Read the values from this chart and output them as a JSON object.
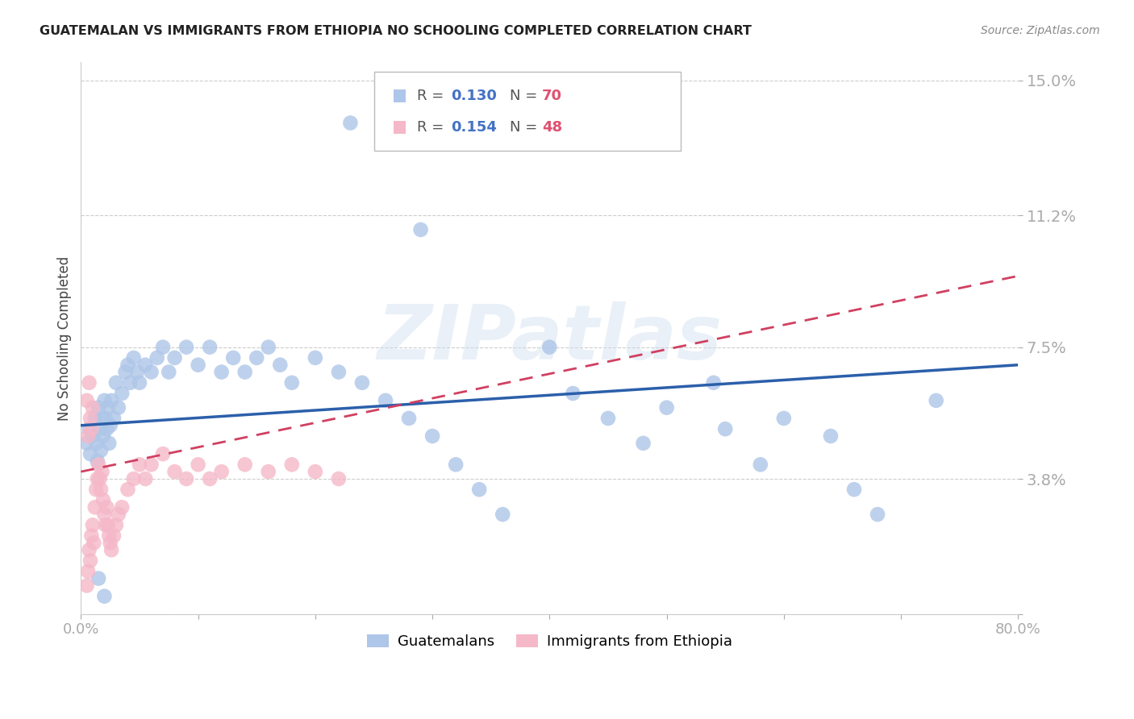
{
  "title": "GUATEMALAN VS IMMIGRANTS FROM ETHIOPIA NO SCHOOLING COMPLETED CORRELATION CHART",
  "source": "Source: ZipAtlas.com",
  "ylabel": "No Schooling Completed",
  "xlim": [
    0,
    0.8
  ],
  "ylim": [
    0,
    0.155
  ],
  "ytick_vals": [
    0.0,
    0.038,
    0.075,
    0.112,
    0.15
  ],
  "ytick_labels": [
    "",
    "3.8%",
    "7.5%",
    "11.2%",
    "15.0%"
  ],
  "xtick_vals": [
    0.0,
    0.1,
    0.2,
    0.3,
    0.4,
    0.5,
    0.6,
    0.7,
    0.8
  ],
  "xtick_labels": [
    "0.0%",
    "",
    "",
    "",
    "",
    "",
    "",
    "",
    "80.0%"
  ],
  "blue_color": "#aec6e8",
  "pink_color": "#f5b8c8",
  "line_blue_color": "#2b5faa",
  "line_pink_color": "#d04060",
  "watermark": "ZIPatlas",
  "blue_line": [
    0.0,
    0.053,
    0.8,
    0.07
  ],
  "pink_line": [
    0.0,
    0.04,
    0.8,
    0.095
  ],
  "blue_scatter": [
    [
      0.005,
      0.048
    ],
    [
      0.007,
      0.052
    ],
    [
      0.008,
      0.045
    ],
    [
      0.01,
      0.05
    ],
    [
      0.012,
      0.055
    ],
    [
      0.013,
      0.048
    ],
    [
      0.014,
      0.043
    ],
    [
      0.015,
      0.058
    ],
    [
      0.016,
      0.052
    ],
    [
      0.017,
      0.046
    ],
    [
      0.018,
      0.055
    ],
    [
      0.019,
      0.05
    ],
    [
      0.02,
      0.06
    ],
    [
      0.021,
      0.055
    ],
    [
      0.022,
      0.052
    ],
    [
      0.023,
      0.058
    ],
    [
      0.024,
      0.048
    ],
    [
      0.025,
      0.053
    ],
    [
      0.026,
      0.06
    ],
    [
      0.028,
      0.055
    ],
    [
      0.03,
      0.065
    ],
    [
      0.032,
      0.058
    ],
    [
      0.035,
      0.062
    ],
    [
      0.038,
      0.068
    ],
    [
      0.04,
      0.07
    ],
    [
      0.042,
      0.065
    ],
    [
      0.045,
      0.072
    ],
    [
      0.048,
      0.068
    ],
    [
      0.05,
      0.065
    ],
    [
      0.055,
      0.07
    ],
    [
      0.06,
      0.068
    ],
    [
      0.065,
      0.072
    ],
    [
      0.07,
      0.075
    ],
    [
      0.075,
      0.068
    ],
    [
      0.08,
      0.072
    ],
    [
      0.09,
      0.075
    ],
    [
      0.1,
      0.07
    ],
    [
      0.11,
      0.075
    ],
    [
      0.12,
      0.068
    ],
    [
      0.13,
      0.072
    ],
    [
      0.14,
      0.068
    ],
    [
      0.15,
      0.072
    ],
    [
      0.16,
      0.075
    ],
    [
      0.17,
      0.07
    ],
    [
      0.18,
      0.065
    ],
    [
      0.2,
      0.072
    ],
    [
      0.22,
      0.068
    ],
    [
      0.24,
      0.065
    ],
    [
      0.26,
      0.06
    ],
    [
      0.28,
      0.055
    ],
    [
      0.3,
      0.05
    ],
    [
      0.32,
      0.042
    ],
    [
      0.34,
      0.035
    ],
    [
      0.36,
      0.028
    ],
    [
      0.4,
      0.075
    ],
    [
      0.42,
      0.062
    ],
    [
      0.45,
      0.055
    ],
    [
      0.48,
      0.048
    ],
    [
      0.5,
      0.058
    ],
    [
      0.54,
      0.065
    ],
    [
      0.55,
      0.052
    ],
    [
      0.58,
      0.042
    ],
    [
      0.6,
      0.055
    ],
    [
      0.64,
      0.05
    ],
    [
      0.66,
      0.035
    ],
    [
      0.68,
      0.028
    ],
    [
      0.73,
      0.06
    ],
    [
      0.23,
      0.138
    ],
    [
      0.29,
      0.108
    ],
    [
      0.015,
      0.01
    ],
    [
      0.02,
      0.005
    ]
  ],
  "pink_scatter": [
    [
      0.005,
      0.008
    ],
    [
      0.006,
      0.012
    ],
    [
      0.007,
      0.018
    ],
    [
      0.008,
      0.015
    ],
    [
      0.009,
      0.022
    ],
    [
      0.01,
      0.025
    ],
    [
      0.011,
      0.02
    ],
    [
      0.012,
      0.03
    ],
    [
      0.013,
      0.035
    ],
    [
      0.014,
      0.038
    ],
    [
      0.015,
      0.042
    ],
    [
      0.016,
      0.038
    ],
    [
      0.017,
      0.035
    ],
    [
      0.018,
      0.04
    ],
    [
      0.019,
      0.032
    ],
    [
      0.02,
      0.028
    ],
    [
      0.021,
      0.025
    ],
    [
      0.022,
      0.03
    ],
    [
      0.023,
      0.025
    ],
    [
      0.024,
      0.022
    ],
    [
      0.025,
      0.02
    ],
    [
      0.026,
      0.018
    ],
    [
      0.028,
      0.022
    ],
    [
      0.03,
      0.025
    ],
    [
      0.032,
      0.028
    ],
    [
      0.035,
      0.03
    ],
    [
      0.04,
      0.035
    ],
    [
      0.045,
      0.038
    ],
    [
      0.05,
      0.042
    ],
    [
      0.055,
      0.038
    ],
    [
      0.06,
      0.042
    ],
    [
      0.07,
      0.045
    ],
    [
      0.08,
      0.04
    ],
    [
      0.09,
      0.038
    ],
    [
      0.1,
      0.042
    ],
    [
      0.11,
      0.038
    ],
    [
      0.12,
      0.04
    ],
    [
      0.14,
      0.042
    ],
    [
      0.16,
      0.04
    ],
    [
      0.18,
      0.042
    ],
    [
      0.2,
      0.04
    ],
    [
      0.22,
      0.038
    ],
    [
      0.005,
      0.06
    ],
    [
      0.007,
      0.065
    ],
    [
      0.008,
      0.055
    ],
    [
      0.01,
      0.058
    ],
    [
      0.006,
      0.05
    ],
    [
      0.009,
      0.052
    ]
  ]
}
